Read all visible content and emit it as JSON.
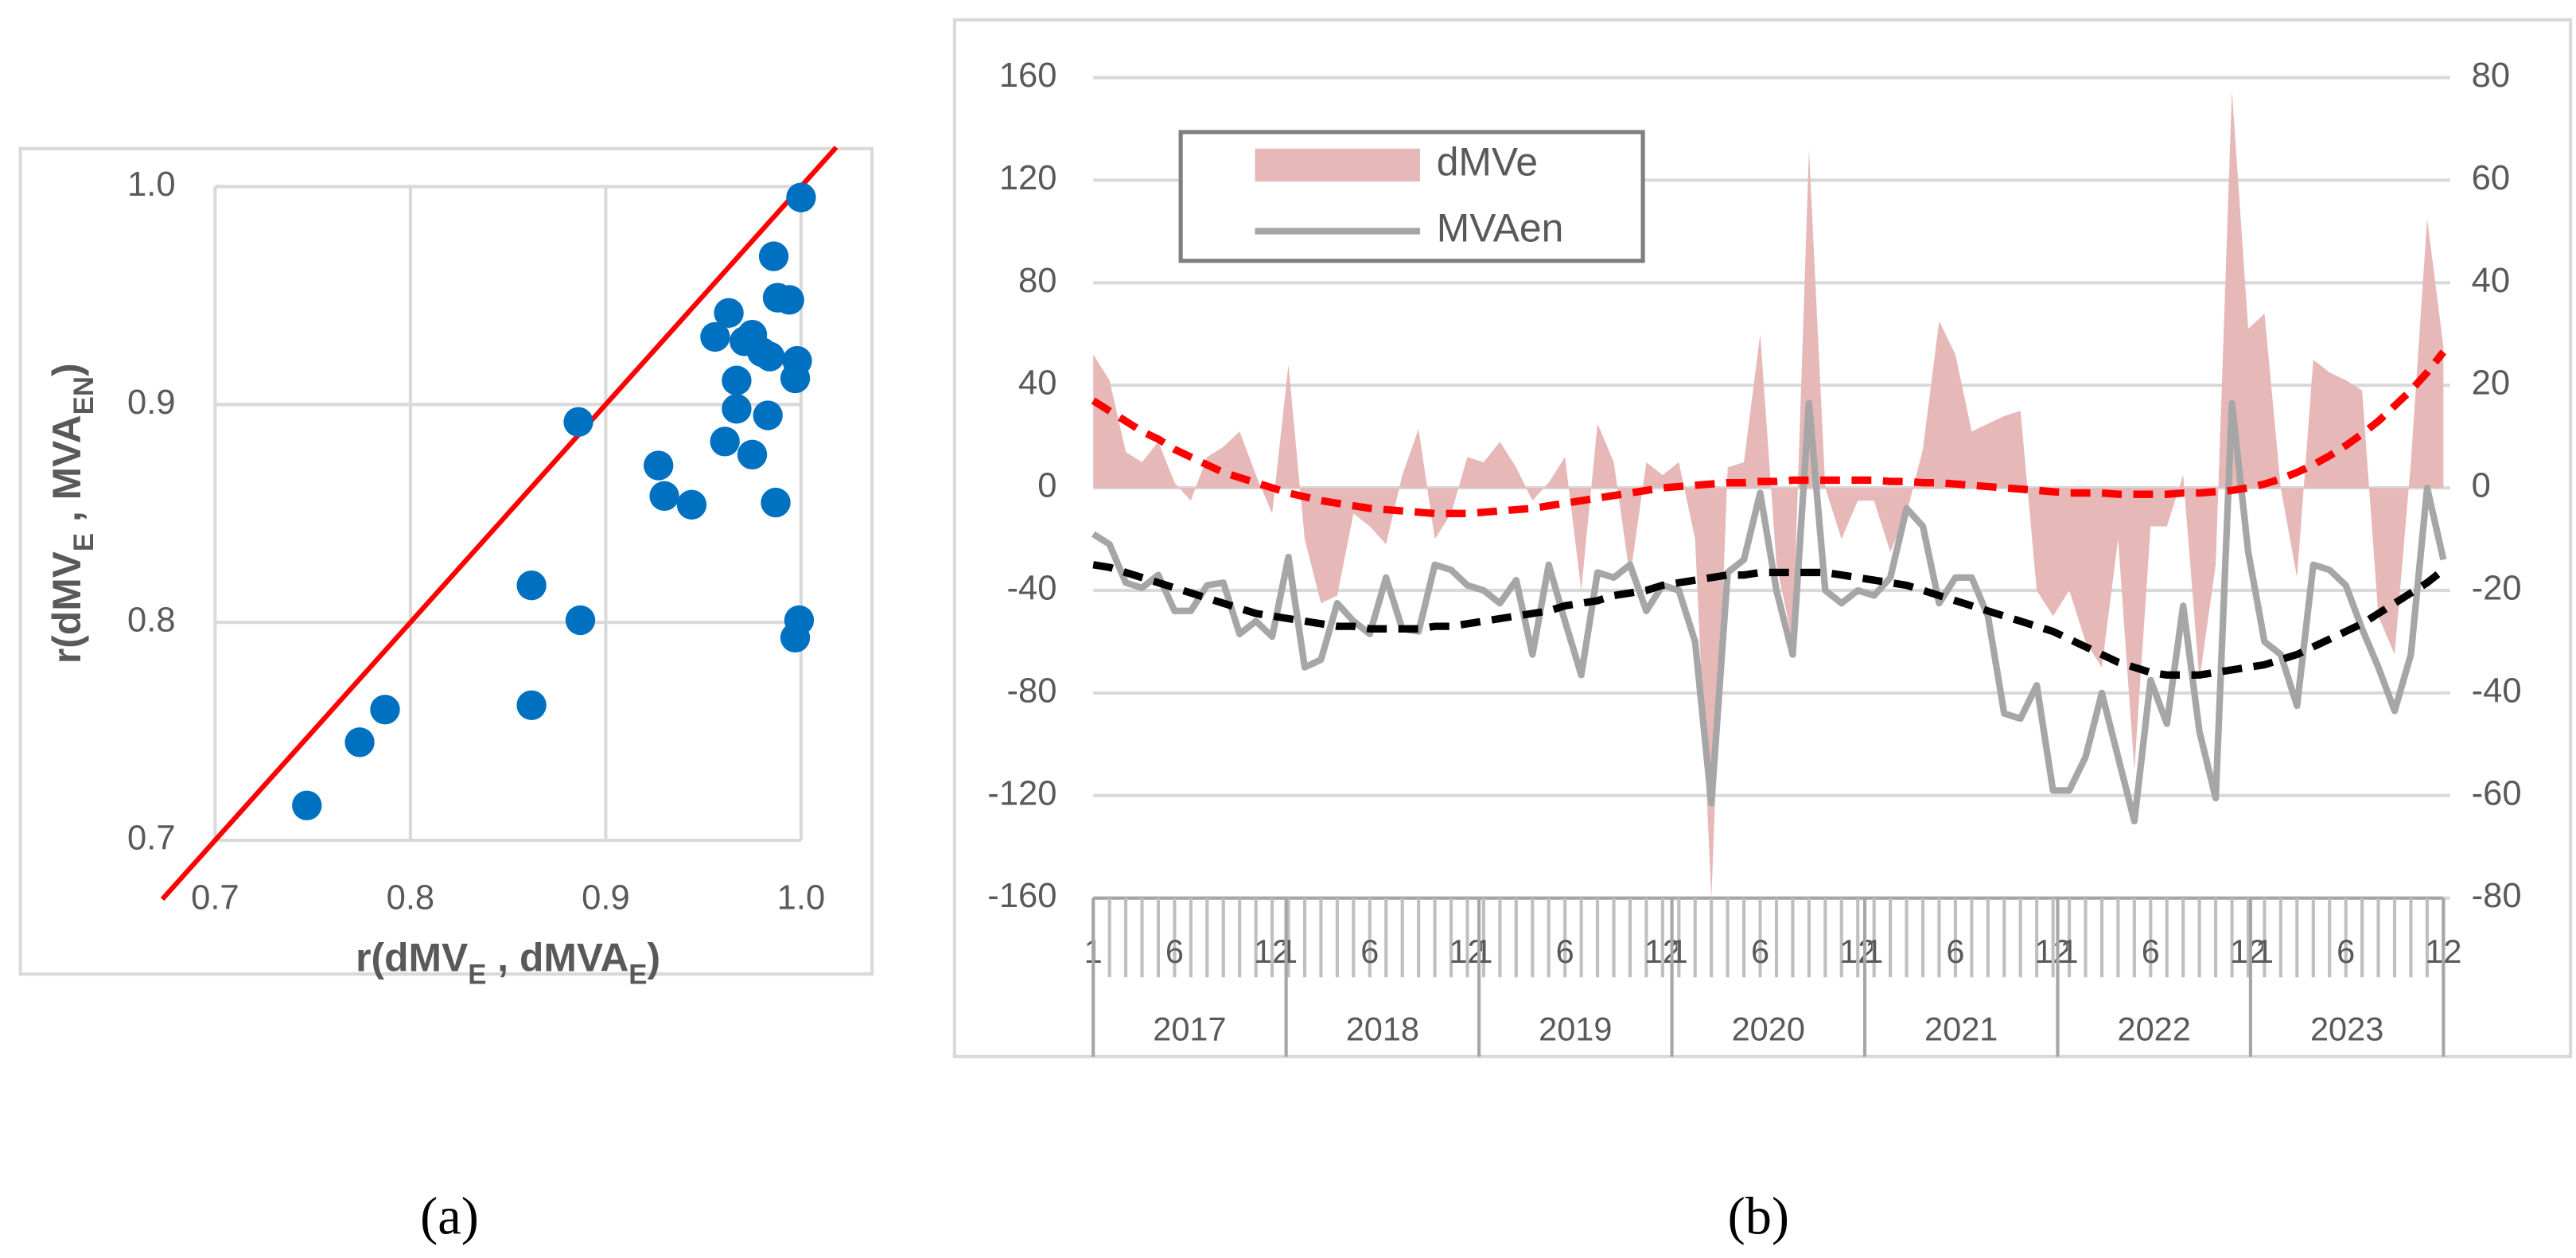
{
  "chart_data": [
    {
      "type": "scatter",
      "caption": "(a)",
      "xlabel": [
        {
          "text": "r(dMV"
        },
        {
          "text": "E",
          "sub": true
        },
        {
          "text": " , dMVA"
        },
        {
          "text": "E",
          "sub": true
        },
        {
          "text": ")"
        }
      ],
      "ylabel": [
        {
          "text": "r(dMV"
        },
        {
          "text": "E",
          "sub": true
        },
        {
          "text": " , MVA"
        },
        {
          "text": "EN",
          "sub": true
        },
        {
          "text": ")"
        }
      ],
      "x": [
        0.747,
        0.774,
        0.787,
        0.862,
        0.862,
        0.887,
        0.886,
        0.927,
        0.93,
        0.944,
        0.956,
        0.963,
        0.961,
        0.967,
        0.967,
        0.971,
        0.975,
        0.975,
        0.98,
        0.984,
        0.983,
        0.986,
        0.988,
        0.987,
        0.994,
        0.998,
        0.997,
        0.999,
        0.997,
        1.0
      ],
      "values": [
        0.716,
        0.745,
        0.76,
        0.762,
        0.817,
        0.801,
        0.892,
        0.872,
        0.858,
        0.854,
        0.931,
        0.942,
        0.883,
        0.911,
        0.898,
        0.929,
        0.932,
        0.877,
        0.924,
        0.922,
        0.895,
        0.968,
        0.949,
        0.855,
        0.948,
        0.92,
        0.912,
        0.801,
        0.793,
        0.995
      ],
      "color": "#0070c0",
      "identity_line_color": "#ff0000",
      "xlim": [
        0.7,
        1.0
      ],
      "ylim": [
        0.7,
        1.0
      ],
      "xticks": [
        0.7,
        0.8,
        0.9,
        {
          "value": 1,
          "label": "1.0"
        }
      ],
      "yticks": [
        0.7,
        0.8,
        0.9,
        {
          "value": 1,
          "label": "1.0"
        }
      ],
      "grid": true
    },
    {
      "type": "combo",
      "caption": "(b)",
      "categories": [
        "1",
        null,
        null,
        null,
        null,
        "6",
        null,
        null,
        null,
        null,
        null,
        "12",
        "1",
        null,
        null,
        null,
        null,
        "6",
        null,
        null,
        null,
        null,
        null,
        "12",
        "1",
        null,
        null,
        null,
        null,
        "6",
        null,
        null,
        null,
        null,
        null,
        "12",
        "1",
        null,
        null,
        null,
        null,
        "6",
        null,
        null,
        null,
        null,
        null,
        "12",
        "1",
        null,
        null,
        null,
        null,
        "6",
        null,
        null,
        null,
        null,
        null,
        "12",
        "1",
        null,
        null,
        null,
        null,
        "6",
        null,
        null,
        null,
        null,
        null,
        "12",
        "1",
        null,
        null,
        null,
        null,
        "6",
        null,
        null,
        null,
        null,
        null,
        "12"
      ],
      "groups": [
        "2017",
        "2018",
        "2019",
        "2020",
        "2021",
        "2022",
        "2023"
      ],
      "series": [
        {
          "name": "dMVe",
          "type": "area",
          "color": "#e6b8b7",
          "values": [
            52,
            42,
            14,
            10,
            18,
            2,
            -5,
            12,
            16,
            22,
            5,
            -10,
            48,
            -20,
            -45,
            -42,
            -10,
            -15,
            -22,
            5,
            23,
            -20,
            -10,
            12,
            10,
            18,
            8,
            -5,
            2,
            12,
            -40,
            25,
            10,
            -35,
            10,
            5,
            10,
            -20,
            -160,
            8,
            10,
            60,
            -30,
            -60,
            132,
            0,
            -20,
            -5,
            -5,
            -25,
            -10,
            15,
            65,
            52,
            22,
            25,
            28,
            30,
            -40,
            -50,
            -40,
            -60,
            -70,
            -20,
            -110,
            -15,
            -15,
            5,
            -75,
            -30,
            155,
            62,
            68,
            0,
            -35,
            50,
            45,
            42,
            38,
            -50,
            -65,
            10,
            105,
            55
          ]
        },
        {
          "name": "MVAen",
          "type": "line",
          "axis": "y2",
          "color": "#a6a6a6",
          "values": [
            -9,
            -11,
            -18.5,
            -19.5,
            -17,
            -24,
            -24,
            -19,
            -18.5,
            -28.5,
            -26,
            -29,
            -13.5,
            -35,
            -33.5,
            -22.5,
            -26,
            -28.5,
            -17.5,
            -27.5,
            -28,
            -15,
            -16,
            -19,
            -20,
            -22.5,
            -18,
            -32.5,
            -15,
            -26,
            -36.5,
            -16.5,
            -17.5,
            -15,
            -24,
            -19,
            -20,
            -30,
            -61.5,
            -16.5,
            -14,
            -1,
            -20,
            -32.5,
            16.5,
            -20,
            -22.5,
            -20,
            -21,
            -17.5,
            -4,
            -7.5,
            -22.5,
            -17.5,
            -17.5,
            -25,
            -44,
            -45,
            -38.5,
            -59,
            -59,
            -52.5,
            -40,
            -52.5,
            -65,
            -37.5,
            -46,
            -23,
            -47.5,
            -60.5,
            16.5,
            -12.5,
            -30,
            -32.5,
            -42.5,
            -15,
            -16,
            -19,
            -27.5,
            -35,
            -43.5,
            -32.5,
            0,
            -14
          ]
        }
      ],
      "trendlines": [
        {
          "color": "#ff0000",
          "dash": true,
          "values": [
            34,
            30,
            26,
            22,
            19,
            15,
            12,
            9,
            6,
            4,
            2,
            0,
            -2,
            -3.5,
            -5,
            -6,
            -7,
            -8,
            -8.5,
            -9,
            -9.5,
            -10,
            -10,
            -10,
            -9.5,
            -9,
            -8.5,
            -8,
            -7,
            -6,
            -5,
            -4,
            -3,
            -2,
            -1,
            0,
            0.5,
            1,
            1.5,
            2,
            2,
            2.5,
            2.5,
            3,
            3,
            3,
            3,
            3,
            3,
            2.5,
            2.5,
            2,
            2,
            1.5,
            1,
            0.5,
            0,
            -0.5,
            -1,
            -1.5,
            -2,
            -2,
            -2,
            -2.5,
            -2.5,
            -2.5,
            -2.5,
            -2,
            -2,
            -1.5,
            -1,
            0,
            1.5,
            3.5,
            6,
            9,
            12.5,
            16.5,
            21,
            26,
            32,
            38,
            45,
            53
          ]
        },
        {
          "color": "#000000",
          "dash": true,
          "axis": "y2",
          "values": [
            -15,
            -15.5,
            -16.5,
            -17.5,
            -18.5,
            -19.5,
            -20.5,
            -21.5,
            -22.5,
            -23.5,
            -24.5,
            -25,
            -25.5,
            -26,
            -26.5,
            -27,
            -27,
            -27.5,
            -27.5,
            -27.5,
            -27.5,
            -27,
            -27,
            -26.5,
            -26,
            -25.5,
            -25,
            -24.5,
            -24,
            -23,
            -22.5,
            -22,
            -21,
            -20.5,
            -20,
            -19,
            -18.5,
            -18,
            -17.5,
            -17,
            -17,
            -16.5,
            -16.5,
            -16.5,
            -16.5,
            -16.5,
            -17,
            -17.5,
            -18,
            -18.5,
            -19,
            -20,
            -21,
            -22,
            -23,
            -24,
            -25,
            -26,
            -27,
            -28,
            -29.5,
            -31,
            -32.5,
            -34,
            -35,
            -36,
            -36.5,
            -36.5,
            -36.5,
            -36,
            -35.5,
            -35,
            -34.5,
            -33.5,
            -32.5,
            -31,
            -29.5,
            -28,
            -26.5,
            -24.5,
            -22.5,
            -20.5,
            -18.5,
            -16
          ]
        }
      ],
      "ylim": [
        -160,
        160
      ],
      "yticks": [
        -160,
        -120,
        -80,
        -40,
        0,
        40,
        80,
        120,
        160
      ],
      "y2lim": [
        -80,
        80
      ],
      "y2ticks": [
        -80,
        -60,
        -40,
        -20,
        0,
        20,
        40,
        60,
        80
      ],
      "grid": true,
      "legend_position": "upper left"
    }
  ]
}
